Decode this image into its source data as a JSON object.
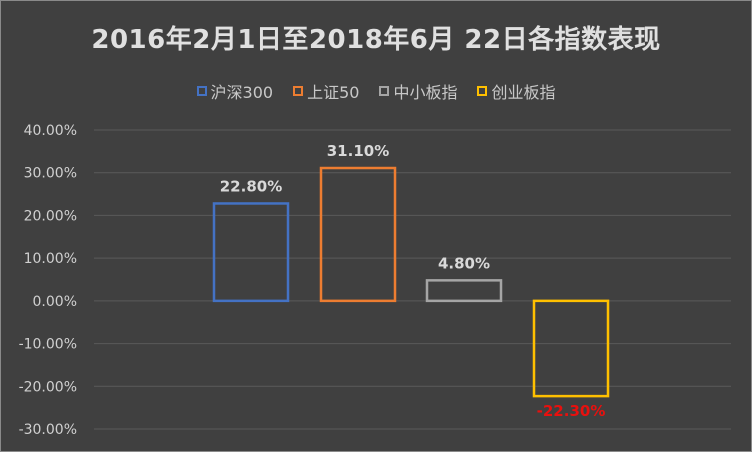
{
  "title": "2016年2月1日至2018年6月 22日各指数表现",
  "colors": {
    "background": "#404040",
    "gridline": "#5a5a5a",
    "tick_text": "#d0d0d0",
    "data_label": "#d9d9d9",
    "negative_label": "#e8100e"
  },
  "chart_data": {
    "type": "bar",
    "title": "2016年2月1日至2018年6月 22日各指数表现",
    "xlabel": "",
    "ylabel": "",
    "ylim": [
      -0.3,
      0.4
    ],
    "ytick_values": [
      0.4,
      0.3,
      0.2,
      0.1,
      0.0,
      -0.1,
      -0.2,
      -0.3
    ],
    "ytick_labels": [
      "40.00%",
      "30.00%",
      "20.00%",
      "10.00%",
      "0.00%",
      "-10.00%",
      "-20.00%",
      "-30.00%"
    ],
    "grid": true,
    "legend_position": "top",
    "series": [
      {
        "name": "沪深300",
        "value": 0.228,
        "label": "22.80%",
        "color": "#4472c4"
      },
      {
        "name": "上证50",
        "value": 0.311,
        "label": "31.10%",
        "color": "#ed7d31"
      },
      {
        "name": "中小板指",
        "value": 0.048,
        "label": "4.80%",
        "color": "#a5a5a5"
      },
      {
        "name": "创业板指",
        "value": -0.223,
        "label": "-22.30%",
        "color": "#ffc000"
      }
    ]
  }
}
